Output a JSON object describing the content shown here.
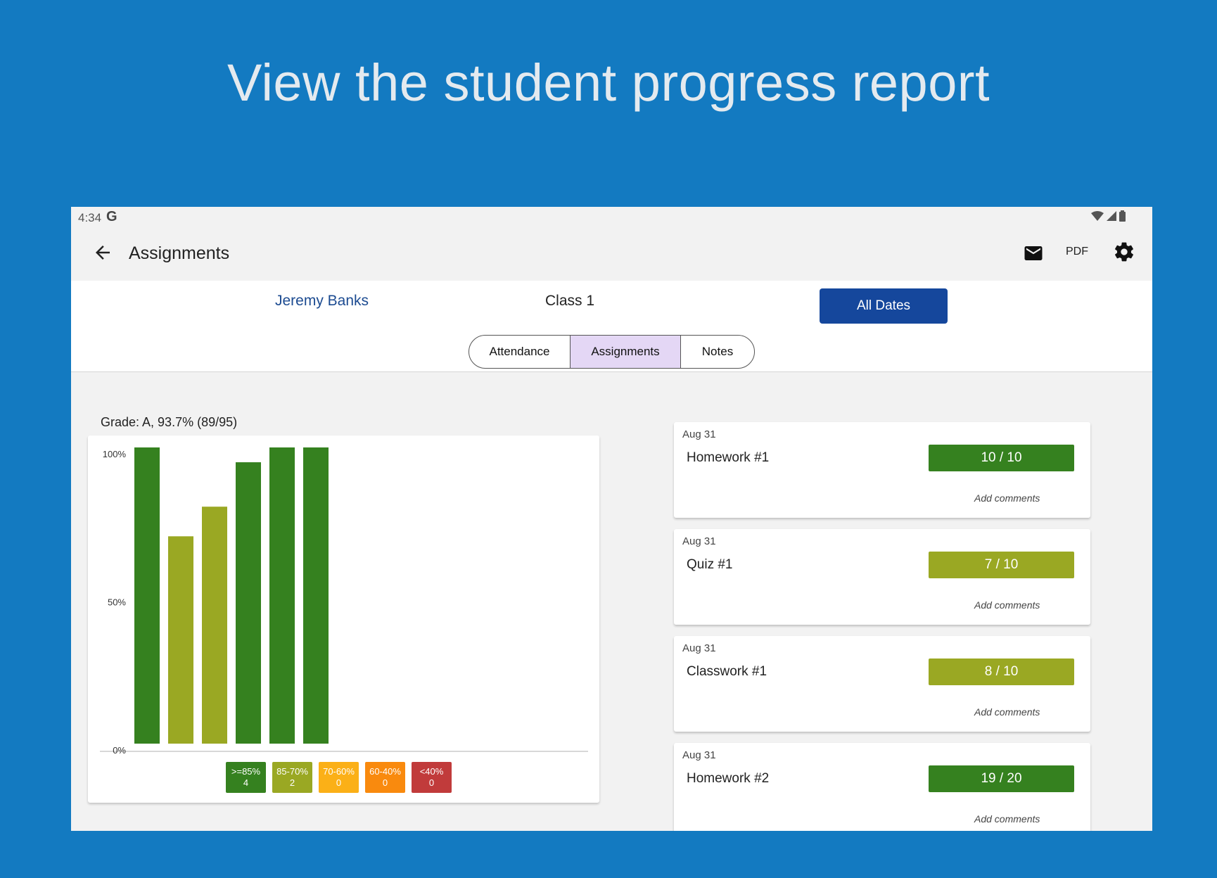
{
  "headline": "View the student progress report",
  "status": {
    "time": "4:34",
    "g_label": "G"
  },
  "appbar": {
    "title": "Assignments",
    "pdf_label": "PDF"
  },
  "selector": {
    "student": "Jeremy Banks",
    "class": "Class 1",
    "dates_button": "All Dates"
  },
  "tabs": [
    "Attendance",
    "Assignments",
    "Notes"
  ],
  "tab_selected": "Assignments",
  "grade": {
    "label": "Grade: A, 93.7%  (89/95)"
  },
  "chart_data": {
    "type": "bar",
    "categories": [
      "Homework #1",
      "Quiz #1",
      "Classwork #1",
      "Homework #2",
      "",
      ""
    ],
    "values": [
      100,
      70,
      80,
      95,
      100,
      100
    ],
    "colors": [
      "#35811f",
      "#9aa823",
      "#9aa823",
      "#35811f",
      "#35811f",
      "#35811f"
    ],
    "ylim": [
      0,
      100
    ],
    "ytick_labels": [
      "100%",
      "50%",
      "0%"
    ],
    "legend": [
      {
        "label": ">=85%",
        "count": "4",
        "color": "#35811f"
      },
      {
        "label": "85-70%",
        "count": "2",
        "color": "#9aa823"
      },
      {
        "label": "70-60%",
        "count": "0",
        "color": "#fbb017"
      },
      {
        "label": "60-40%",
        "count": "0",
        "color": "#f98a0e"
      },
      {
        "label": "<40%",
        "count": "0",
        "color": "#c13b3b"
      }
    ]
  },
  "assignments": [
    {
      "date": "Aug 31",
      "name": "Homework #1",
      "score": "10 / 10",
      "fraction": 1.0,
      "color": "#35811f",
      "comments": "Add comments"
    },
    {
      "date": "Aug 31",
      "name": "Quiz #1",
      "score": "7 / 10",
      "fraction": 0.7,
      "color": "#9aa823",
      "comments": "Add comments"
    },
    {
      "date": "Aug 31",
      "name": "Classwork #1",
      "score": "8 / 10",
      "fraction": 0.8,
      "color": "#9aa823",
      "comments": "Add comments"
    },
    {
      "date": "Aug 31",
      "name": "Homework #2",
      "score": "19 / 20",
      "fraction": 0.95,
      "color": "#35811f",
      "comments": "Add comments"
    }
  ]
}
